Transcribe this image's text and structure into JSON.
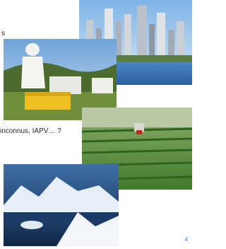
{
  "slide": {
    "fragment_text": "s",
    "caption": "inconnus, IAPV… ?",
    "page_number": "4"
  }
}
